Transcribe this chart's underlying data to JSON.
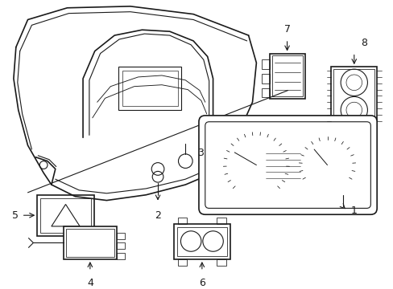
{
  "bg_color": "#ffffff",
  "line_color": "#1a1a1a",
  "lw": 0.8,
  "lw_thick": 1.2,
  "figsize": [
    4.89,
    3.6
  ],
  "dpi": 100,
  "label_fontsize": 9
}
